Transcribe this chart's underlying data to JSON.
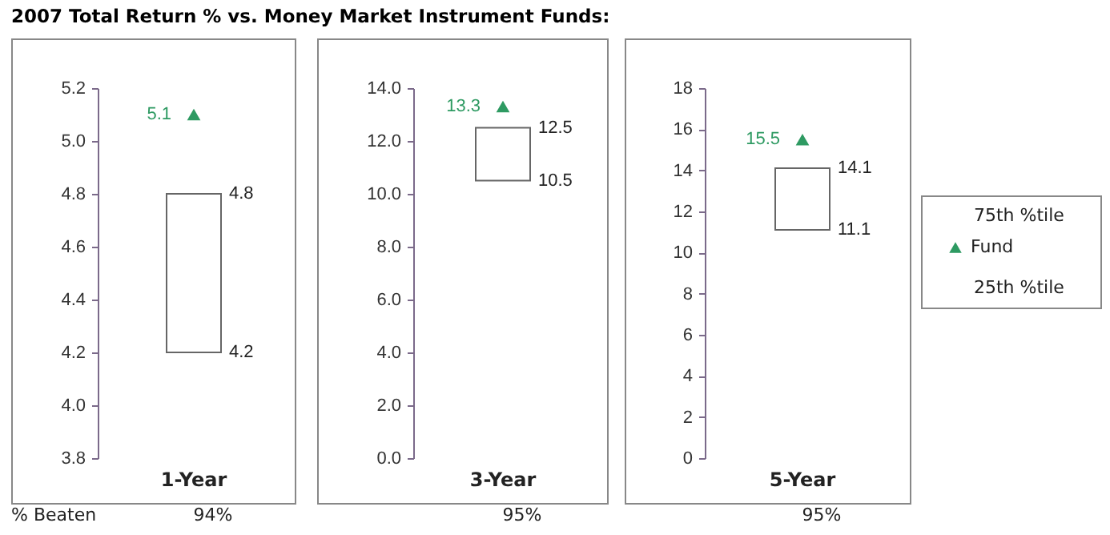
{
  "chart_data": [
    {
      "type": "bar",
      "title": "2007 Total Return % vs. Money Market Instrument Funds:",
      "categories": [
        "1-Year"
      ],
      "ylim": [
        3.8,
        5.2
      ],
      "yticks": [
        3.8,
        {
          "value": 4,
          "label": "4.0"
        },
        4.2,
        4.4,
        4.6,
        4.8,
        {
          "value": 5,
          "label": "5.0"
        },
        5.2
      ],
      "grid": false,
      "series": [
        {
          "type": "bar",
          "base": [
            4.2
          ],
          "values": [
            0.6
          ],
          "color": "#ffffff"
        },
        {
          "type": "scatter",
          "x": [
            "1-Year"
          ],
          "values": [
            5.1
          ],
          "color": "#2e9a62",
          "marker": "triangle",
          "value_labels": [
            "5.1"
          ]
        }
      ],
      "annotations": [
        {
          "text": "4.8",
          "x": "1-Year",
          "y": 4.8
        },
        {
          "text": "4.2",
          "x": "1-Year",
          "y": 4.2
        },
        "% Beaten",
        "94%"
      ]
    },
    {
      "type": "bar",
      "categories": [
        "3-Year"
      ],
      "ylim": [
        0,
        14
      ],
      "yticks": [
        {
          "value": 0,
          "label": "0.0"
        },
        {
          "value": 2,
          "label": "2.0"
        },
        {
          "value": 4,
          "label": "4.0"
        },
        {
          "value": 6,
          "label": "6.0"
        },
        {
          "value": 8,
          "label": "8.0"
        },
        {
          "value": 10,
          "label": "10.0"
        },
        {
          "value": 12,
          "label": "12.0"
        },
        {
          "value": 14,
          "label": "14.0"
        }
      ],
      "grid": false,
      "series": [
        {
          "type": "bar",
          "base": [
            10.5
          ],
          "values": [
            2.0
          ],
          "color": "#ffffff"
        },
        {
          "type": "scatter",
          "x": [
            "3-Year"
          ],
          "values": [
            13.3
          ],
          "color": "#2e9a62",
          "marker": "triangle",
          "value_labels": [
            "13.3"
          ]
        }
      ],
      "annotations": [
        {
          "text": "12.5",
          "x": "3-Year",
          "y": 12.5
        },
        {
          "text": "10.5",
          "x": "3-Year",
          "y": 10.5
        },
        "95%"
      ]
    },
    {
      "type": "bar",
      "categories": [
        "5-Year"
      ],
      "ylim": [
        0,
        18
      ],
      "yticks": [
        0,
        2,
        4,
        6,
        8,
        10,
        12,
        14,
        16,
        18
      ],
      "grid": false,
      "legend": "right",
      "series": [
        {
          "type": "bar",
          "base": [
            11.1
          ],
          "values": [
            3.0
          ],
          "color": "#ffffff"
        },
        {
          "name": "Fund",
          "type": "scatter",
          "x": [
            "5-Year"
          ],
          "values": [
            15.5
          ],
          "color": "#2e9a62",
          "marker": "triangle",
          "value_labels": [
            "15.5"
          ]
        }
      ],
      "annotations": [
        {
          "text": "14.1",
          "x": "5-Year",
          "y": 14.1
        },
        {
          "text": "11.1",
          "x": "5-Year",
          "y": 11.1
        },
        "75th %tile",
        "25th %tile",
        "95%"
      ]
    }
  ]
}
